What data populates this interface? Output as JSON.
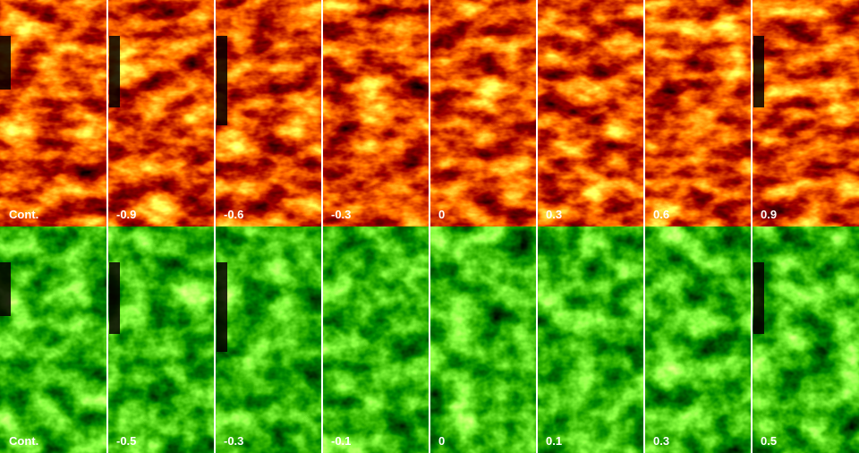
{
  "rows": [
    {
      "labels": [
        "Cont.",
        "-0.9",
        "-0.6",
        "-0.3",
        "0",
        "0.3",
        "0.6",
        "0.9"
      ]
    },
    {
      "labels": [
        "Cont.",
        "-0.5",
        "-0.3",
        "-0.1",
        "0",
        "0.1",
        "0.3",
        "0.5"
      ]
    }
  ]
}
